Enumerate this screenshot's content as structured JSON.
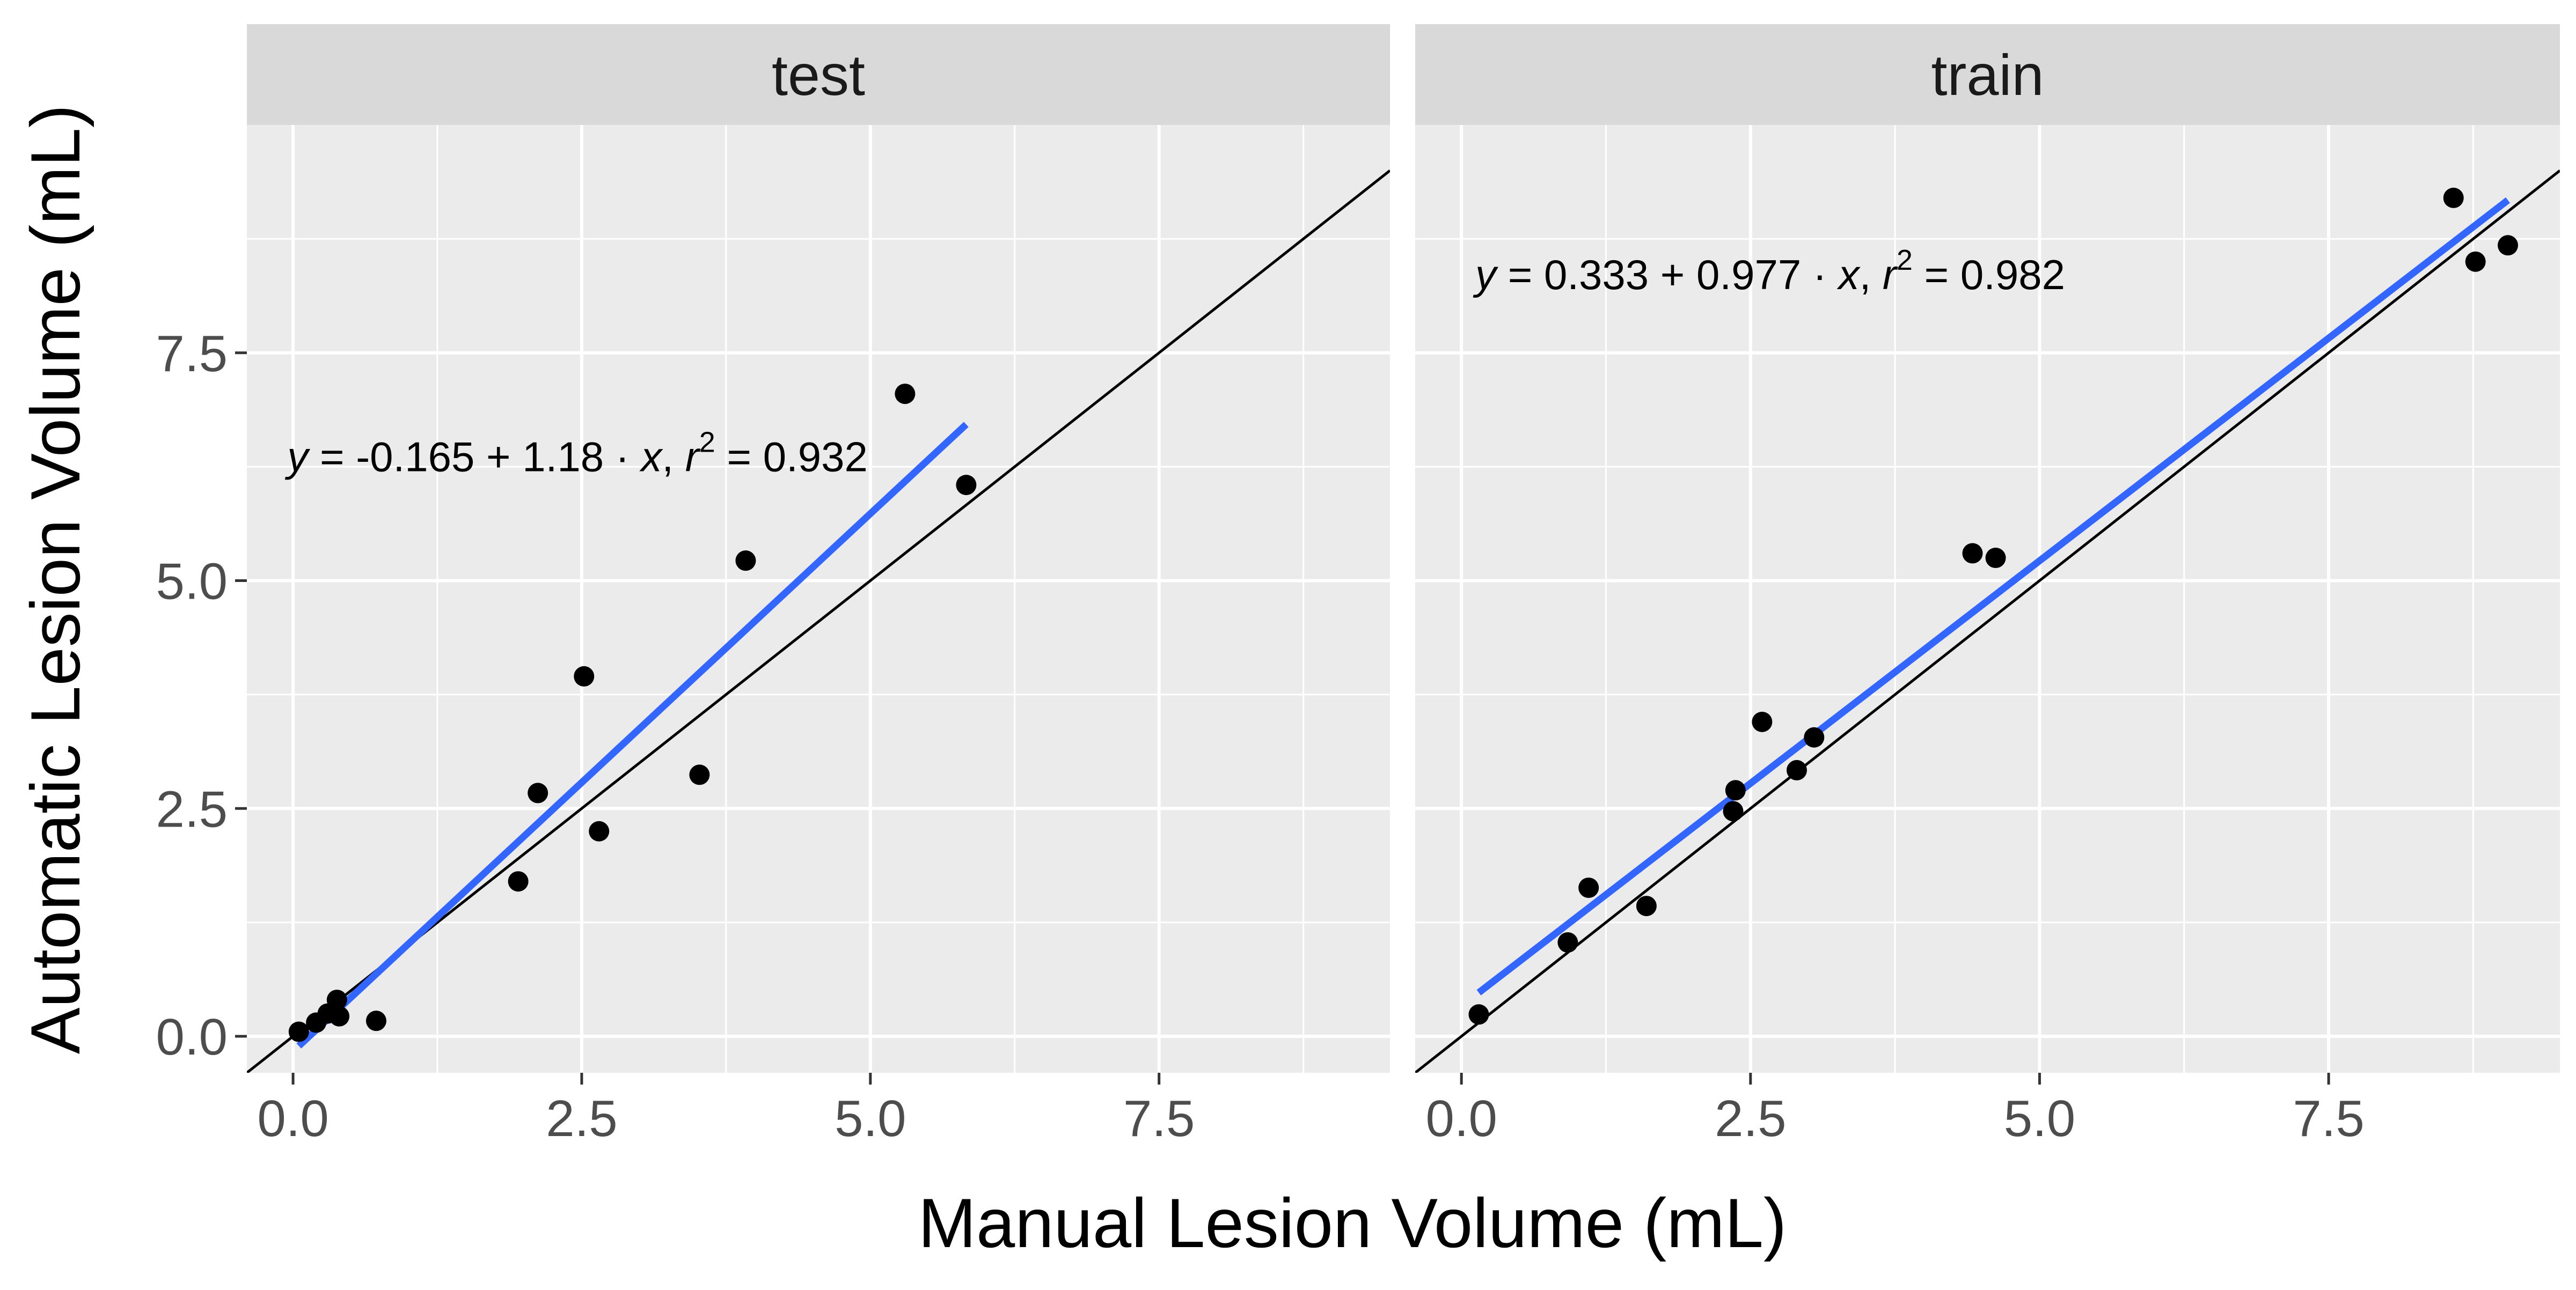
{
  "chart_data": {
    "type": "scatter",
    "xlabel": "Manual Lesion Volume (mL)",
    "ylabel": "Automatic Lesion Volume (mL)",
    "xlim": [
      -0.4,
      9.5
    ],
    "ylim": [
      -0.4,
      10.0
    ],
    "x_ticks": [
      0.0,
      2.5,
      5.0,
      7.5
    ],
    "y_ticks": [
      0.0,
      2.5,
      5.0,
      7.5
    ],
    "x_tick_labels": [
      "0.0",
      "2.5",
      "5.0",
      "7.5"
    ],
    "y_tick_labels": [
      "0.0",
      "2.5",
      "5.0",
      "7.5"
    ],
    "grid": true,
    "reference_line": {
      "slope": 1,
      "intercept": 0,
      "color": "#000000"
    },
    "point_color": "#000000",
    "fit_color": "#3366FF",
    "panel_background": "#EBEBEB",
    "strip_background": "#D9D9D9",
    "panels": [
      {
        "name": "test",
        "points": [
          {
            "x": 0.05,
            "y": 0.05
          },
          {
            "x": 0.2,
            "y": 0.15
          },
          {
            "x": 0.3,
            "y": 0.25
          },
          {
            "x": 0.38,
            "y": 0.4
          },
          {
            "x": 0.4,
            "y": 0.22
          },
          {
            "x": 0.72,
            "y": 0.17
          },
          {
            "x": 1.95,
            "y": 1.7
          },
          {
            "x": 2.12,
            "y": 2.67
          },
          {
            "x": 2.52,
            "y": 3.95
          },
          {
            "x": 2.65,
            "y": 2.25
          },
          {
            "x": 3.52,
            "y": 2.87
          },
          {
            "x": 3.92,
            "y": 5.22
          },
          {
            "x": 5.3,
            "y": 7.05
          },
          {
            "x": 5.83,
            "y": 6.05
          }
        ],
        "fit": {
          "intercept": -0.165,
          "slope": 1.18,
          "x_range": [
            0.05,
            5.83
          ]
        },
        "equation": {
          "y_var": "y",
          "eq": " = ",
          "intercept": "-0.165",
          "plus": " + ",
          "slope": "1.18",
          "dot": " · ",
          "x_var": "x",
          "sep": ",  ",
          "r_var": "r",
          "r_exp": "2",
          "r2_eq": " = ",
          "r2": "0.932"
        }
      },
      {
        "name": "train",
        "points": [
          {
            "x": 0.15,
            "y": 0.24
          },
          {
            "x": 0.92,
            "y": 1.03
          },
          {
            "x": 1.1,
            "y": 1.63
          },
          {
            "x": 1.6,
            "y": 1.43
          },
          {
            "x": 2.35,
            "y": 2.47
          },
          {
            "x": 2.37,
            "y": 2.7
          },
          {
            "x": 2.6,
            "y": 3.45
          },
          {
            "x": 2.9,
            "y": 2.92
          },
          {
            "x": 3.05,
            "y": 3.28
          },
          {
            "x": 4.42,
            "y": 5.3
          },
          {
            "x": 4.62,
            "y": 5.25
          },
          {
            "x": 8.58,
            "y": 9.2
          },
          {
            "x": 8.77,
            "y": 8.5
          },
          {
            "x": 9.05,
            "y": 8.68
          }
        ],
        "fit": {
          "intercept": 0.333,
          "slope": 0.977,
          "x_range": [
            0.15,
            9.05
          ]
        },
        "equation": {
          "y_var": "y",
          "eq": " = ",
          "intercept": "0.333",
          "plus": " + ",
          "slope": "0.977",
          "dot": " · ",
          "x_var": "x",
          "sep": ",  ",
          "r_var": "r",
          "r_exp": "2",
          "r2_eq": " = ",
          "r2": "0.982"
        }
      }
    ]
  }
}
